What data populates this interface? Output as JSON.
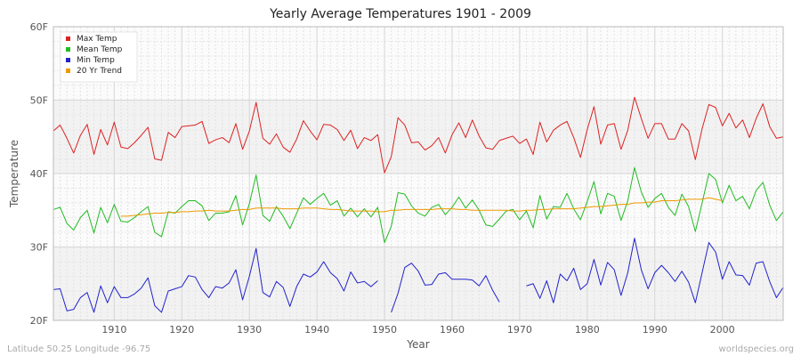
{
  "chart_data": {
    "type": "line",
    "title": "Yearly Average Temperatures 1901 - 2009",
    "xlabel": "Year",
    "ylabel": "Temperature",
    "xlim": [
      1901,
      2009
    ],
    "ylim": [
      20,
      60
    ],
    "x_ticks": [
      1910,
      1920,
      1930,
      1940,
      1950,
      1960,
      1970,
      1980,
      1990,
      2000
    ],
    "x_tick_labels": [
      "1910",
      "1920",
      "1930",
      "1940",
      "1950",
      "1960",
      "1970",
      "1980",
      "1990",
      "2000"
    ],
    "y_ticks": [
      20,
      30,
      40,
      50,
      60
    ],
    "y_tick_labels": [
      "20F",
      "30F",
      "40F",
      "50F",
      "60F"
    ],
    "grid": true,
    "legend_position": "top-left",
    "x": [
      1901,
      1902,
      1903,
      1904,
      1905,
      1906,
      1907,
      1908,
      1909,
      1910,
      1911,
      1912,
      1913,
      1914,
      1915,
      1916,
      1917,
      1918,
      1919,
      1920,
      1921,
      1922,
      1923,
      1924,
      1925,
      1926,
      1927,
      1928,
      1929,
      1930,
      1931,
      1932,
      1933,
      1934,
      1935,
      1936,
      1937,
      1938,
      1939,
      1940,
      1941,
      1942,
      1943,
      1944,
      1945,
      1946,
      1947,
      1948,
      1949,
      1950,
      1951,
      1952,
      1953,
      1954,
      1955,
      1956,
      1957,
      1958,
      1959,
      1960,
      1961,
      1962,
      1963,
      1964,
      1965,
      1966,
      1967,
      1968,
      1969,
      1970,
      1971,
      1972,
      1973,
      1974,
      1975,
      1976,
      1977,
      1978,
      1979,
      1980,
      1981,
      1982,
      1983,
      1984,
      1985,
      1986,
      1987,
      1988,
      1989,
      1990,
      1991,
      1992,
      1993,
      1994,
      1995,
      1996,
      1997,
      1998,
      1999,
      2000,
      2001,
      2002,
      2003,
      2004,
      2005,
      2006,
      2007,
      2008,
      2009
    ],
    "series": [
      {
        "name": "Max Temp",
        "color": "#dd2222",
        "values": [
          45.8,
          46.6,
          44.8,
          42.8,
          45.2,
          46.7,
          42.6,
          46.0,
          43.9,
          47.0,
          43.6,
          43.4,
          44.2,
          45.2,
          46.3,
          42.0,
          41.8,
          45.6,
          44.9,
          46.4,
          46.5,
          46.6,
          47.1,
          44.1,
          44.6,
          44.9,
          44.2,
          46.8,
          43.3,
          45.8,
          49.7,
          44.8,
          44.0,
          45.4,
          43.6,
          42.9,
          44.7,
          47.2,
          45.8,
          44.6,
          46.7,
          46.6,
          46.0,
          44.5,
          45.9,
          43.4,
          44.9,
          44.5,
          45.3,
          40.1,
          42.3,
          47.6,
          46.6,
          44.2,
          44.3,
          43.2,
          43.8,
          44.9,
          42.8,
          45.3,
          46.9,
          44.9,
          47.3,
          45.1,
          43.5,
          43.3,
          44.5,
          44.8,
          45.1,
          44.1,
          44.7,
          42.6,
          47.0,
          44.3,
          45.9,
          46.6,
          47.1,
          44.9,
          42.2,
          46.0,
          49.1,
          44.0,
          46.6,
          46.8,
          43.3,
          45.9,
          50.4,
          47.5,
          44.8,
          46.8,
          46.8,
          44.7,
          44.7,
          46.8,
          45.8,
          41.9,
          46.1,
          49.4,
          49.0,
          46.5,
          48.2,
          46.2,
          47.3,
          44.9,
          47.5,
          49.5,
          46.4,
          44.8,
          45.0
        ]
      },
      {
        "name": "Mean Temp",
        "color": "#22bb22",
        "values": [
          35.1,
          35.4,
          33.2,
          32.3,
          34.0,
          35.0,
          31.9,
          35.4,
          33.3,
          35.8,
          33.5,
          33.4,
          34.0,
          34.8,
          35.5,
          32.0,
          31.4,
          34.8,
          34.6,
          35.5,
          36.3,
          36.3,
          35.6,
          33.6,
          34.6,
          34.6,
          34.8,
          37.0,
          33.0,
          35.9,
          39.8,
          34.3,
          33.5,
          35.5,
          34.2,
          32.5,
          34.6,
          36.7,
          35.8,
          36.6,
          37.3,
          35.7,
          36.3,
          34.2,
          35.3,
          34.1,
          35.2,
          34.1,
          35.4,
          30.6,
          32.8,
          37.4,
          37.2,
          35.6,
          34.6,
          34.2,
          35.4,
          35.8,
          34.4,
          35.4,
          36.8,
          35.3,
          36.4,
          35.0,
          33.0,
          32.8,
          33.8,
          34.9,
          35.1,
          33.7,
          34.9,
          32.6,
          37.0,
          33.8,
          35.5,
          35.4,
          37.3,
          35.2,
          33.7,
          36.2,
          38.9,
          34.5,
          37.3,
          36.9,
          33.6,
          36.3,
          40.8,
          37.5,
          35.4,
          36.6,
          37.3,
          35.4,
          34.3,
          37.2,
          35.5,
          32.1,
          36.0,
          40.0,
          39.2,
          36.0,
          38.4,
          36.3,
          36.9,
          35.2,
          37.7,
          38.8,
          35.7,
          33.6,
          34.8
        ]
      },
      {
        "name": "Min Temp",
        "color": "#2222cc",
        "values": [
          24.2,
          24.3,
          21.3,
          21.5,
          23.1,
          23.8,
          21.1,
          24.7,
          22.4,
          24.6,
          23.1,
          23.1,
          23.6,
          24.4,
          25.8,
          22.0,
          21.1,
          24.0,
          24.3,
          24.6,
          26.1,
          25.9,
          24.2,
          23.1,
          24.6,
          24.4,
          25.1,
          26.9,
          22.8,
          26.0,
          29.8,
          23.8,
          23.2,
          25.3,
          24.5,
          21.9,
          24.6,
          26.3,
          25.9,
          26.6,
          28.0,
          26.5,
          25.7,
          24.0,
          26.6,
          25.1,
          25.3,
          24.6,
          25.4,
          null,
          21.1,
          23.7,
          27.2,
          27.8,
          26.7,
          24.8,
          24.9,
          26.3,
          26.5,
          25.6,
          25.6,
          25.6,
          25.5,
          24.7,
          26.1,
          24.1,
          22.5,
          null,
          null,
          null,
          24.7,
          25.0,
          23.0,
          25.4,
          22.4,
          26.3,
          25.4,
          27.1,
          24.2,
          25.0,
          28.3,
          24.8,
          27.9,
          26.9,
          23.4,
          26.5,
          31.2,
          26.9,
          24.3,
          26.5,
          27.5,
          26.5,
          25.3,
          26.7,
          25.2,
          22.4,
          26.5,
          30.6,
          29.3,
          25.6,
          28.0,
          26.2,
          26.1,
          24.8,
          27.8,
          28.0,
          25.3,
          23.1,
          24.5
        ]
      },
      {
        "name": "20 Yr Trend",
        "color": "#ee9900",
        "values": [
          null,
          null,
          null,
          null,
          null,
          null,
          null,
          null,
          null,
          null,
          34.2,
          34.2,
          34.3,
          34.4,
          34.5,
          34.6,
          34.6,
          34.7,
          34.7,
          34.8,
          34.8,
          34.9,
          34.9,
          35.0,
          34.9,
          34.9,
          34.9,
          35.0,
          35.1,
          35.1,
          35.3,
          35.3,
          35.3,
          35.3,
          35.2,
          35.2,
          35.2,
          35.3,
          35.3,
          35.3,
          35.2,
          35.1,
          35.1,
          35.0,
          34.9,
          34.9,
          34.9,
          34.9,
          34.8,
          34.8,
          35.0,
          35.0,
          35.1,
          35.1,
          35.1,
          35.1,
          35.1,
          35.2,
          35.2,
          35.2,
          35.1,
          35.1,
          35.0,
          35.0,
          35.0,
          35.0,
          35.0,
          35.0,
          34.9,
          34.9,
          35.0,
          35.0,
          35.1,
          35.1,
          35.2,
          35.2,
          35.2,
          35.2,
          35.3,
          35.4,
          35.5,
          35.5,
          35.6,
          35.7,
          35.8,
          35.8,
          36.0,
          36.0,
          36.1,
          36.1,
          36.3,
          36.3,
          36.3,
          36.4,
          36.5,
          36.5,
          36.5,
          36.7,
          36.5,
          36.3,
          null,
          null,
          null,
          null,
          null,
          null,
          null,
          null,
          null
        ]
      }
    ]
  },
  "footer": {
    "location": "Latitude 50.25 Longitude -96.75",
    "source": "worldspecies.org"
  }
}
